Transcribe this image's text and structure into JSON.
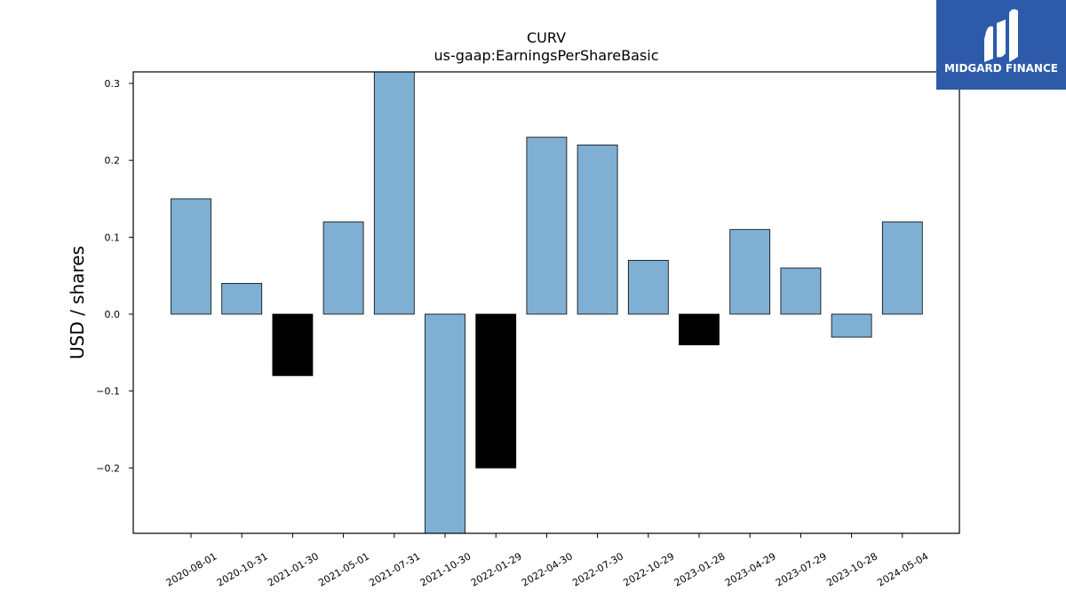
{
  "chart_data": {
    "type": "bar",
    "title": "CURV",
    "subtitle": "us-gaap:EarningsPerShareBasic",
    "ylabel": "USD / shares",
    "xlabel": "",
    "categories": [
      "2020-08-01",
      "2020-10-31",
      "2021-01-30",
      "2021-05-01",
      "2021-07-31",
      "2021-10-30",
      "2022-01-29",
      "2022-04-30",
      "2022-07-30",
      "2022-10-29",
      "2023-01-28",
      "2023-04-29",
      "2023-07-29",
      "2023-10-28",
      "2024-05-04"
    ],
    "values": [
      0.15,
      0.04,
      -0.08,
      0.12,
      0.32,
      -0.29,
      -0.2,
      0.23,
      0.22,
      0.07,
      -0.04,
      0.11,
      0.06,
      -0.03,
      0.12
    ],
    "ylim": [
      -0.285,
      0.315
    ],
    "yticks": [
      -0.2,
      -0.1,
      0.0,
      0.1,
      0.2,
      0.3
    ],
    "ytick_labels": [
      "−0.2",
      "−0.1",
      "0.0",
      "0.1",
      "0.2",
      "0.3"
    ],
    "grid": false,
    "colors": {
      "positive": "#7fb0d4",
      "negative_shaded": "#000000",
      "edge": "#000000"
    },
    "shaded_negative_indices": [
      2,
      6,
      10
    ]
  },
  "logo": {
    "text": "MIDGARD FINANCE",
    "background": "#2d5aa9",
    "icon": "midgard-logo-icon"
  }
}
